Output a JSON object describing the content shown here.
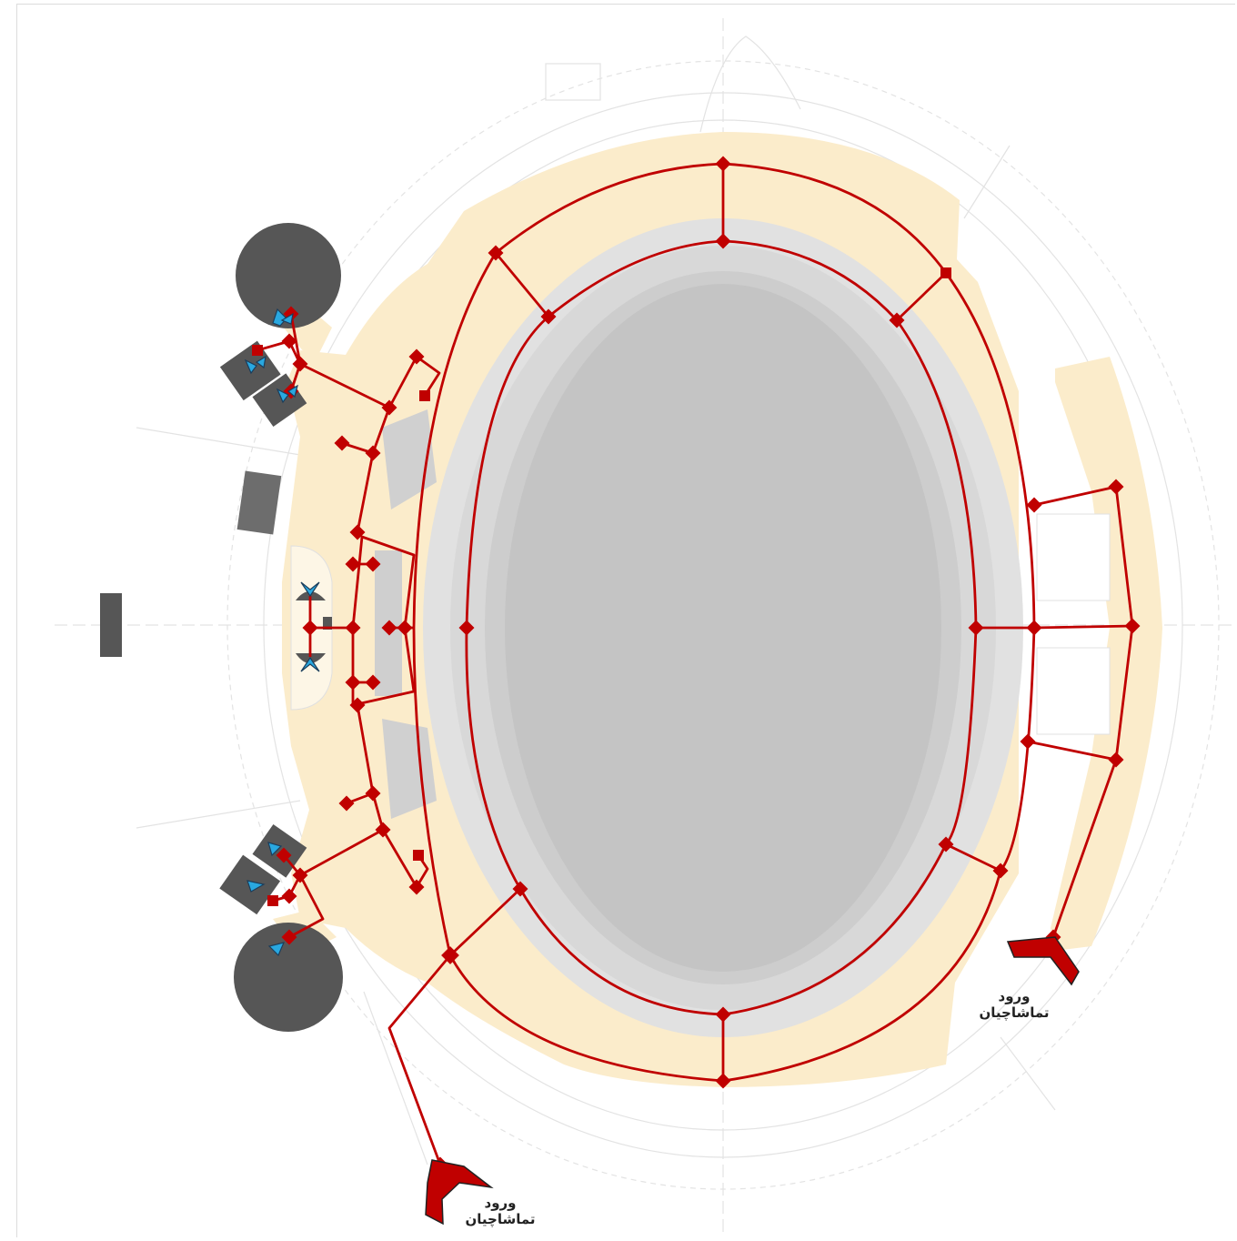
{
  "entrances": [
    {
      "line1": "ورود",
      "line2": "تماشاچیان"
    },
    {
      "line1": "ورود",
      "line2": "تماشاچیان"
    }
  ],
  "colors": {
    "route": "#c00000",
    "concourse": "#fbeccb",
    "stands": "#d9d9d9",
    "field": "#c8c8c8",
    "pool": "#555555",
    "arrow_blue": "#29a8e0",
    "linework": "#e3e3e3"
  },
  "icons": [
    "route-node-icon",
    "entry-arrow-icon",
    "stair-arrow-icon"
  ]
}
